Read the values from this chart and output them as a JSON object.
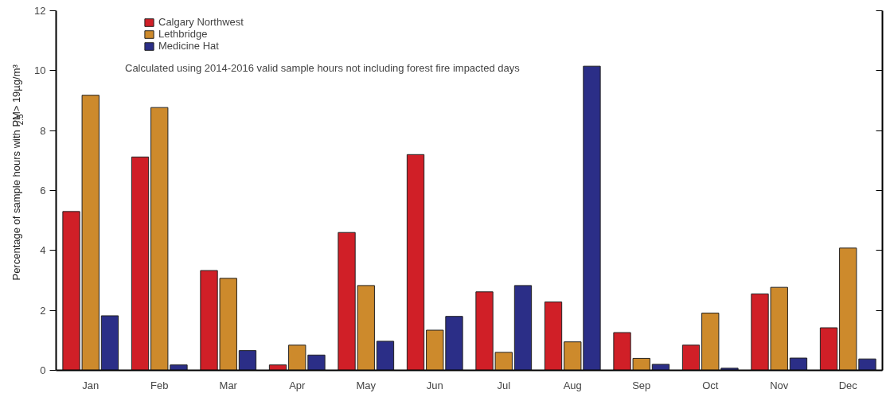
{
  "chart_data": {
    "type": "bar",
    "ylabel": "Percentage of sample hours with PM$_{2.5}$ > 19µg/m³",
    "categories": [
      "Jan",
      "Feb",
      "Mar",
      "Apr",
      "May",
      "Jun",
      "Jul",
      "Aug",
      "Sep",
      "Oct",
      "Nov",
      "Dec"
    ],
    "series": [
      {
        "name": "Calgary Northwest",
        "color": "#d01f27",
        "values": [
          5.3,
          7.12,
          3.33,
          0.18,
          4.6,
          7.2,
          2.62,
          2.28,
          1.26,
          0.84,
          2.55,
          1.42
        ]
      },
      {
        "name": "Lethbridge",
        "color": "#cd8a2c",
        "values": [
          9.18,
          8.77,
          3.07,
          0.84,
          2.83,
          1.34,
          0.6,
          0.95,
          0.4,
          1.91,
          2.77,
          4.08
        ]
      },
      {
        "name": "Medicine Hat",
        "color": "#2b2e87",
        "values": [
          1.82,
          0.18,
          0.66,
          0.51,
          0.97,
          1.8,
          2.83,
          10.15,
          0.2,
          0.07,
          0.41,
          0.38
        ]
      }
    ],
    "ylim": [
      0,
      12
    ],
    "yticks": [
      0,
      2,
      4,
      6,
      8,
      10,
      12
    ],
    "annotations": [
      "Calculated using 2014-2016 valid sample hours not including forest fire impacted days"
    ],
    "legend": "top left",
    "grid": false
  }
}
